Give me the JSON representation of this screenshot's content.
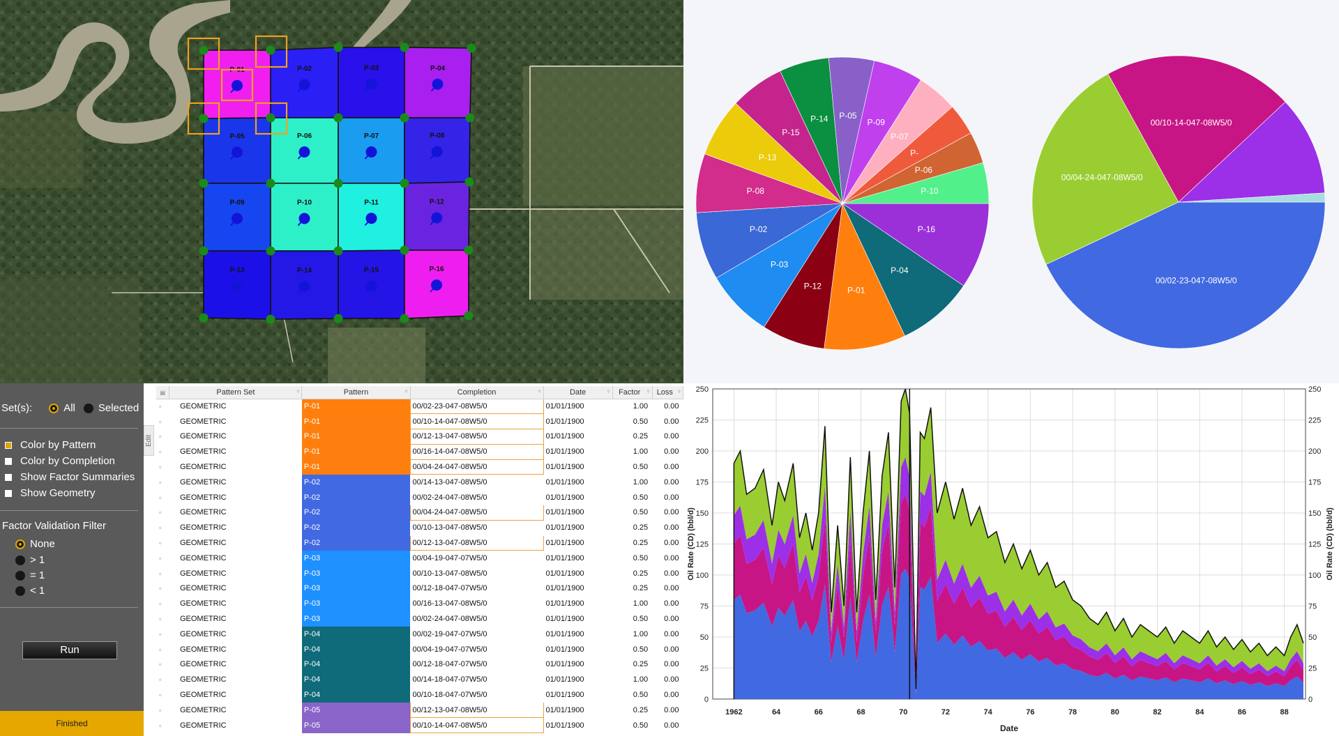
{
  "map": {
    "patterns": [
      {
        "label": "P-01",
        "color": "#f01ff0"
      },
      {
        "label": "P-02",
        "color": "#2a1ff5"
      },
      {
        "label": "P-03",
        "color": "#2a10ea"
      },
      {
        "label": "P-04",
        "color": "#a81ff0"
      },
      {
        "label": "P-05",
        "color": "#1a36ea"
      },
      {
        "label": "P-06",
        "color": "#2ef0c8"
      },
      {
        "label": "P-07",
        "color": "#1a9cf0"
      },
      {
        "label": "P-08",
        "color": "#3424e8"
      },
      {
        "label": "P-09",
        "color": "#1646f0"
      },
      {
        "label": "P-10",
        "color": "#2ef0c8"
      },
      {
        "label": "P-11",
        "color": "#1ff0e0"
      },
      {
        "label": "P-12",
        "color": "#6a24e0"
      },
      {
        "label": "P-13",
        "color": "#1c10e8"
      },
      {
        "label": "P-14",
        "color": "#2418e6"
      },
      {
        "label": "P-15",
        "color": "#2414e6"
      },
      {
        "label": "P-16",
        "color": "#ee1ef0"
      }
    ]
  },
  "pie_left": {
    "slices": [
      {
        "label": "P-16",
        "value": 9.5,
        "color": "#9b30d9"
      },
      {
        "label": "P-04",
        "value": 8.5,
        "color": "#0f6a7a"
      },
      {
        "label": "P-01",
        "value": 9.0,
        "color": "#ff7f0e"
      },
      {
        "label": "P-12",
        "value": 7.0,
        "color": "#8b0012"
      },
      {
        "label": "P-03",
        "value": 7.5,
        "color": "#1e8cf0"
      },
      {
        "label": "P-02",
        "value": 7.5,
        "color": "#3a68d6"
      },
      {
        "label": "P-08",
        "value": 6.5,
        "color": "#d22c8c"
      },
      {
        "label": "P-13",
        "value": 6.5,
        "color": "#eccb0a"
      },
      {
        "label": "P-15",
        "value": 6.0,
        "color": "#c4248c"
      },
      {
        "label": "P-14",
        "value": 5.5,
        "color": "#0a9040"
      },
      {
        "label": "P-05",
        "value": 5.0,
        "color": "#8860c8"
      },
      {
        "label": "P-09",
        "value": 5.5,
        "color": "#c040ee"
      },
      {
        "label": "P-07",
        "value": 4.5,
        "color": "#ffb0c0"
      },
      {
        "label": "P-",
        "value": 3.5,
        "color": "#f05a3c"
      },
      {
        "label": "P-06",
        "value": 3.5,
        "color": "#d06432"
      },
      {
        "label": "P-10",
        "value": 4.5,
        "color": "#52f08a"
      }
    ]
  },
  "pie_right": {
    "slices": [
      {
        "label": "00/02-23-047-08W5/0",
        "value": 43,
        "color": "#4169e1"
      },
      {
        "label": "00/04-24-047-08W5/0",
        "value": 24,
        "color": "#9acd32"
      },
      {
        "label": "00/10-14-047-08W5/0",
        "value": 21,
        "color": "#c71585"
      },
      {
        "label": "",
        "value": 11,
        "color": "#9b30e8"
      },
      {
        "label": "",
        "value": 1,
        "color": "#a8dce0"
      }
    ]
  },
  "controls": {
    "sets_label": "Set(s):",
    "all_label": "All",
    "selected_label": "Selected",
    "options": [
      "Color by Pattern",
      "Color by Completion",
      "Show Factor Summaries",
      "Show Geometry"
    ],
    "filter_title": "Factor Validation Filter",
    "filters": [
      "None",
      "> 1",
      "= 1",
      "< 1"
    ],
    "run_label": "Run",
    "status": "Finished"
  },
  "table": {
    "edit_tab": "Edit",
    "columns": [
      "Pattern Set",
      "Pattern",
      "Completion",
      "Date",
      "Factor",
      "Loss"
    ],
    "rows": [
      {
        "set": "GEOMETRIC",
        "pattern": "P-01",
        "pcolor": "#ff7f0e",
        "completion": "00/02-23-047-08W5/0",
        "hl": true,
        "date": "01/01/1900",
        "factor": "1.00",
        "loss": "0.00"
      },
      {
        "set": "GEOMETRIC",
        "pattern": "P-01",
        "pcolor": "#ff7f0e",
        "completion": "00/10-14-047-08W5/0",
        "hl": true,
        "date": "01/01/1900",
        "factor": "0.50",
        "loss": "0.00"
      },
      {
        "set": "GEOMETRIC",
        "pattern": "P-01",
        "pcolor": "#ff7f0e",
        "completion": "00/12-13-047-08W5/0",
        "hl": true,
        "date": "01/01/1900",
        "factor": "0.25",
        "loss": "0.00"
      },
      {
        "set": "GEOMETRIC",
        "pattern": "P-01",
        "pcolor": "#ff7f0e",
        "completion": "00/16-14-047-08W5/0",
        "hl": true,
        "date": "01/01/1900",
        "factor": "1.00",
        "loss": "0.00"
      },
      {
        "set": "GEOMETRIC",
        "pattern": "P-01",
        "pcolor": "#ff7f0e",
        "completion": "00/04-24-047-08W5/0",
        "hl": true,
        "date": "01/01/1900",
        "factor": "0.50",
        "loss": "0.00"
      },
      {
        "set": "GEOMETRIC",
        "pattern": "P-02",
        "pcolor": "#4169e1",
        "completion": "00/14-13-047-08W5/0",
        "hl": false,
        "date": "01/01/1900",
        "factor": "1.00",
        "loss": "0.00"
      },
      {
        "set": "GEOMETRIC",
        "pattern": "P-02",
        "pcolor": "#4169e1",
        "completion": "00/02-24-047-08W5/0",
        "hl": false,
        "date": "01/01/1900",
        "factor": "0.50",
        "loss": "0.00"
      },
      {
        "set": "GEOMETRIC",
        "pattern": "P-02",
        "pcolor": "#4169e1",
        "completion": "00/04-24-047-08W5/0",
        "hl": true,
        "date": "01/01/1900",
        "factor": "0.50",
        "loss": "0.00"
      },
      {
        "set": "GEOMETRIC",
        "pattern": "P-02",
        "pcolor": "#4169e1",
        "completion": "00/10-13-047-08W5/0",
        "hl": false,
        "date": "01/01/1900",
        "factor": "0.25",
        "loss": "0.00"
      },
      {
        "set": "GEOMETRIC",
        "pattern": "P-02",
        "pcolor": "#4169e1",
        "completion": "00/12-13-047-08W5/0",
        "hl": true,
        "date": "01/01/1900",
        "factor": "0.25",
        "loss": "0.00"
      },
      {
        "set": "GEOMETRIC",
        "pattern": "P-03",
        "pcolor": "#1e90ff",
        "completion": "00/04-19-047-07W5/0",
        "hl": false,
        "date": "01/01/1900",
        "factor": "0.50",
        "loss": "0.00"
      },
      {
        "set": "GEOMETRIC",
        "pattern": "P-03",
        "pcolor": "#1e90ff",
        "completion": "00/10-13-047-08W5/0",
        "hl": false,
        "date": "01/01/1900",
        "factor": "0.25",
        "loss": "0.00"
      },
      {
        "set": "GEOMETRIC",
        "pattern": "P-03",
        "pcolor": "#1e90ff",
        "completion": "00/12-18-047-07W5/0",
        "hl": false,
        "date": "01/01/1900",
        "factor": "0.25",
        "loss": "0.00"
      },
      {
        "set": "GEOMETRIC",
        "pattern": "P-03",
        "pcolor": "#1e90ff",
        "completion": "00/16-13-047-08W5/0",
        "hl": false,
        "date": "01/01/1900",
        "factor": "1.00",
        "loss": "0.00"
      },
      {
        "set": "GEOMETRIC",
        "pattern": "P-03",
        "pcolor": "#1e90ff",
        "completion": "00/02-24-047-08W5/0",
        "hl": false,
        "date": "01/01/1900",
        "factor": "0.50",
        "loss": "0.00"
      },
      {
        "set": "GEOMETRIC",
        "pattern": "P-04",
        "pcolor": "#0f6a7a",
        "completion": "00/02-19-047-07W5/0",
        "hl": false,
        "date": "01/01/1900",
        "factor": "1.00",
        "loss": "0.00"
      },
      {
        "set": "GEOMETRIC",
        "pattern": "P-04",
        "pcolor": "#0f6a7a",
        "completion": "00/04-19-047-07W5/0",
        "hl": false,
        "date": "01/01/1900",
        "factor": "0.50",
        "loss": "0.00"
      },
      {
        "set": "GEOMETRIC",
        "pattern": "P-04",
        "pcolor": "#0f6a7a",
        "completion": "00/12-18-047-07W5/0",
        "hl": false,
        "date": "01/01/1900",
        "factor": "0.25",
        "loss": "0.00"
      },
      {
        "set": "GEOMETRIC",
        "pattern": "P-04",
        "pcolor": "#0f6a7a",
        "completion": "00/14-18-047-07W5/0",
        "hl": false,
        "date": "01/01/1900",
        "factor": "1.00",
        "loss": "0.00"
      },
      {
        "set": "GEOMETRIC",
        "pattern": "P-04",
        "pcolor": "#0f6a7a",
        "completion": "00/10-18-047-07W5/0",
        "hl": false,
        "date": "01/01/1900",
        "factor": "0.50",
        "loss": "0.00"
      },
      {
        "set": "GEOMETRIC",
        "pattern": "P-05",
        "pcolor": "#8a64c8",
        "completion": "00/12-13-047-08W5/0",
        "hl": true,
        "date": "01/01/1900",
        "factor": "0.25",
        "loss": "0.00"
      },
      {
        "set": "GEOMETRIC",
        "pattern": "P-05",
        "pcolor": "#8a64c8",
        "completion": "00/10-14-047-08W5/0",
        "hl": true,
        "date": "01/01/1900",
        "factor": "0.50",
        "loss": "0.00"
      }
    ]
  },
  "chart_data": {
    "type": "area",
    "xlabel": "Date",
    "ylabel": "Oil Rate (CD) (bbl/d)",
    "xlim": [
      1961,
      1989
    ],
    "ylim": [
      0,
      250
    ],
    "xticks": [
      "1962",
      "64",
      "66",
      "68",
      "70",
      "72",
      "74",
      "76",
      "78",
      "80",
      "82",
      "84",
      "86",
      "88"
    ],
    "yticks": [
      0,
      25,
      50,
      75,
      100,
      125,
      150,
      175,
      200,
      225,
      250
    ],
    "series_colors": [
      "#4169e1",
      "#c71585",
      "#9b30e8",
      "#9acd32"
    ],
    "total_profile": [
      [
        1962.0,
        190
      ],
      [
        1962.3,
        200
      ],
      [
        1962.6,
        165
      ],
      [
        1963.0,
        170
      ],
      [
        1963.4,
        185
      ],
      [
        1963.8,
        140
      ],
      [
        1964.1,
        175
      ],
      [
        1964.4,
        160
      ],
      [
        1964.8,
        190
      ],
      [
        1965.1,
        130
      ],
      [
        1965.4,
        150
      ],
      [
        1965.7,
        120
      ],
      [
        1966.0,
        150
      ],
      [
        1966.3,
        220
      ],
      [
        1966.6,
        70
      ],
      [
        1966.9,
        140
      ],
      [
        1967.2,
        75
      ],
      [
        1967.5,
        195
      ],
      [
        1967.8,
        70
      ],
      [
        1968.1,
        150
      ],
      [
        1968.4,
        200
      ],
      [
        1968.7,
        80
      ],
      [
        1969.0,
        180
      ],
      [
        1969.3,
        215
      ],
      [
        1969.6,
        90
      ],
      [
        1969.9,
        240
      ],
      [
        1970.1,
        250
      ],
      [
        1970.3,
        230
      ],
      [
        1970.6,
        8
      ],
      [
        1970.8,
        215
      ],
      [
        1971.0,
        210
      ],
      [
        1971.3,
        235
      ],
      [
        1971.6,
        150
      ],
      [
        1972.0,
        175
      ],
      [
        1972.4,
        145
      ],
      [
        1972.8,
        170
      ],
      [
        1973.2,
        140
      ],
      [
        1973.6,
        155
      ],
      [
        1974.0,
        130
      ],
      [
        1974.4,
        135
      ],
      [
        1974.8,
        110
      ],
      [
        1975.2,
        125
      ],
      [
        1975.6,
        105
      ],
      [
        1976.0,
        120
      ],
      [
        1976.4,
        100
      ],
      [
        1976.8,
        110
      ],
      [
        1977.2,
        90
      ],
      [
        1977.6,
        95
      ],
      [
        1978.0,
        80
      ],
      [
        1978.4,
        75
      ],
      [
        1978.8,
        65
      ],
      [
        1979.2,
        60
      ],
      [
        1979.6,
        70
      ],
      [
        1980.0,
        55
      ],
      [
        1980.4,
        65
      ],
      [
        1980.8,
        50
      ],
      [
        1981.2,
        60
      ],
      [
        1981.6,
        55
      ],
      [
        1982.0,
        50
      ],
      [
        1982.4,
        58
      ],
      [
        1982.8,
        45
      ],
      [
        1983.2,
        55
      ],
      [
        1983.6,
        50
      ],
      [
        1984.0,
        45
      ],
      [
        1984.4,
        55
      ],
      [
        1984.8,
        42
      ],
      [
        1985.2,
        50
      ],
      [
        1985.6,
        40
      ],
      [
        1986.0,
        48
      ],
      [
        1986.4,
        38
      ],
      [
        1986.8,
        45
      ],
      [
        1987.2,
        35
      ],
      [
        1987.6,
        42
      ],
      [
        1988.0,
        35
      ],
      [
        1988.3,
        50
      ],
      [
        1988.6,
        60
      ],
      [
        1988.9,
        45
      ]
    ]
  }
}
